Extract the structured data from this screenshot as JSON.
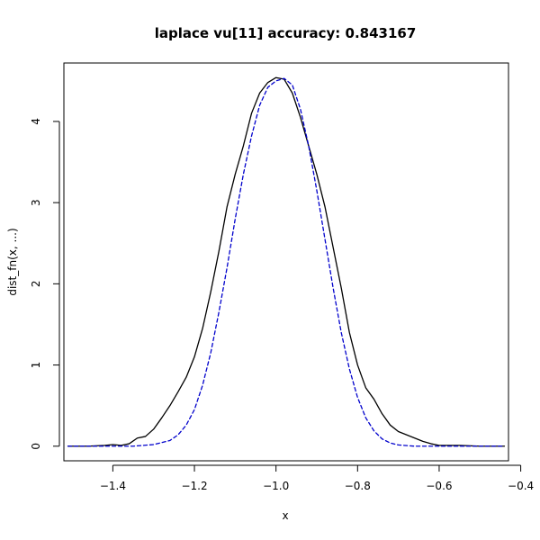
{
  "chart_data": {
    "type": "line",
    "title": "laplace vu[11] accuracy: 0.843167",
    "xlabel": "x",
    "ylabel": "dist_fn(x, ...)",
    "xlim": [
      -1.52,
      -0.43
    ],
    "ylim": [
      -0.18,
      4.72
    ],
    "xticks": [
      -1.4,
      -1.2,
      -1.0,
      -0.8,
      -0.6,
      -0.4
    ],
    "xtick_labels": [
      "−1.4",
      "−1.2",
      "−1.0",
      "−0.8",
      "−0.6",
      "−0.4"
    ],
    "yticks": [
      0,
      1,
      2,
      3,
      4
    ],
    "ytick_labels": [
      "0",
      "1",
      "2",
      "3",
      "4"
    ],
    "grid": false,
    "legend": "none",
    "series": [
      {
        "style": "solid",
        "color": "#000000",
        "points": [
          [
            -1.51,
            0.0
          ],
          [
            -1.46,
            0.0
          ],
          [
            -1.42,
            0.01
          ],
          [
            -1.4,
            0.02
          ],
          [
            -1.38,
            0.01
          ],
          [
            -1.36,
            0.03
          ],
          [
            -1.34,
            0.1
          ],
          [
            -1.32,
            0.12
          ],
          [
            -1.3,
            0.21
          ],
          [
            -1.28,
            0.35
          ],
          [
            -1.26,
            0.5
          ],
          [
            -1.24,
            0.67
          ],
          [
            -1.22,
            0.85
          ],
          [
            -1.2,
            1.1
          ],
          [
            -1.18,
            1.45
          ],
          [
            -1.16,
            1.9
          ],
          [
            -1.14,
            2.4
          ],
          [
            -1.12,
            2.95
          ],
          [
            -1.1,
            3.35
          ],
          [
            -1.08,
            3.7
          ],
          [
            -1.06,
            4.1
          ],
          [
            -1.04,
            4.35
          ],
          [
            -1.02,
            4.48
          ],
          [
            -1.0,
            4.54
          ],
          [
            -0.98,
            4.52
          ],
          [
            -0.96,
            4.35
          ],
          [
            -0.94,
            4.05
          ],
          [
            -0.92,
            3.7
          ],
          [
            -0.9,
            3.35
          ],
          [
            -0.88,
            2.95
          ],
          [
            -0.86,
            2.45
          ],
          [
            -0.84,
            1.95
          ],
          [
            -0.82,
            1.4
          ],
          [
            -0.8,
            1.0
          ],
          [
            -0.78,
            0.72
          ],
          [
            -0.76,
            0.58
          ],
          [
            -0.74,
            0.4
          ],
          [
            -0.72,
            0.26
          ],
          [
            -0.7,
            0.18
          ],
          [
            -0.68,
            0.14
          ],
          [
            -0.66,
            0.1
          ],
          [
            -0.64,
            0.06
          ],
          [
            -0.62,
            0.03
          ],
          [
            -0.6,
            0.01
          ],
          [
            -0.55,
            0.01
          ],
          [
            -0.5,
            0.0
          ],
          [
            -0.44,
            0.0
          ]
        ]
      },
      {
        "style": "dashed",
        "color": "#0000cc",
        "points": [
          [
            -1.51,
            0.0
          ],
          [
            -1.4,
            0.0
          ],
          [
            -1.35,
            0.0
          ],
          [
            -1.3,
            0.02
          ],
          [
            -1.26,
            0.07
          ],
          [
            -1.24,
            0.14
          ],
          [
            -1.22,
            0.26
          ],
          [
            -1.2,
            0.45
          ],
          [
            -1.18,
            0.75
          ],
          [
            -1.16,
            1.15
          ],
          [
            -1.14,
            1.65
          ],
          [
            -1.12,
            2.2
          ],
          [
            -1.1,
            2.8
          ],
          [
            -1.08,
            3.35
          ],
          [
            -1.06,
            3.82
          ],
          [
            -1.04,
            4.2
          ],
          [
            -1.02,
            4.42
          ],
          [
            -1.0,
            4.5
          ],
          [
            -0.98,
            4.53
          ],
          [
            -0.96,
            4.45
          ],
          [
            -0.94,
            4.15
          ],
          [
            -0.92,
            3.7
          ],
          [
            -0.9,
            3.15
          ],
          [
            -0.88,
            2.55
          ],
          [
            -0.86,
            1.95
          ],
          [
            -0.84,
            1.4
          ],
          [
            -0.82,
            0.95
          ],
          [
            -0.8,
            0.6
          ],
          [
            -0.78,
            0.35
          ],
          [
            -0.76,
            0.19
          ],
          [
            -0.74,
            0.09
          ],
          [
            -0.72,
            0.04
          ],
          [
            -0.7,
            0.015
          ],
          [
            -0.66,
            0.0
          ],
          [
            -0.6,
            0.0
          ],
          [
            -0.5,
            0.0
          ],
          [
            -0.44,
            0.0
          ]
        ]
      }
    ]
  }
}
